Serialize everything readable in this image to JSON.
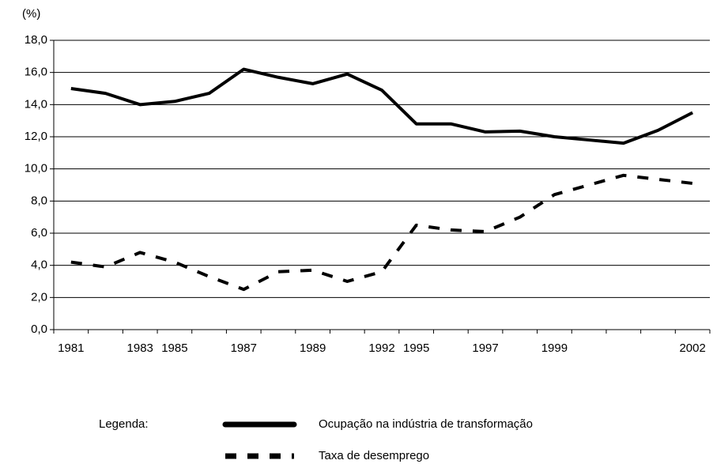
{
  "chart_data": {
    "type": "line",
    "y_axis_label": "(%)",
    "legend_title": "Legenda:",
    "categories": [
      "1981",
      null,
      "1983",
      "1985",
      null,
      "1987",
      null,
      "1989",
      null,
      "1992",
      "1995",
      null,
      "1997",
      null,
      "1999",
      null,
      null,
      null,
      "2002"
    ],
    "series": [
      {
        "name": "Ocupação na indústria de transformação",
        "color": "#000000",
        "dash": "solid",
        "values": [
          15.0,
          14.7,
          14.0,
          14.2,
          14.7,
          16.2,
          15.7,
          15.3,
          15.9,
          14.9,
          12.8,
          12.8,
          12.3,
          12.35,
          12.0,
          11.8,
          11.6,
          12.4,
          13.5
        ]
      },
      {
        "name": "Taxa de desemprego",
        "color": "#000000",
        "dash": "dashed",
        "values": [
          4.2,
          3.9,
          4.8,
          4.2,
          3.3,
          2.5,
          3.6,
          3.7,
          3.0,
          3.6,
          6.5,
          6.2,
          6.1,
          7.0,
          8.4,
          9.0,
          9.6,
          9.35,
          9.1
        ]
      }
    ],
    "ylim": [
      0,
      18
    ],
    "yticks": [
      {
        "value": 0,
        "label": "0,0"
      },
      {
        "value": 2,
        "label": "2,0"
      },
      {
        "value": 4,
        "label": "4,0"
      },
      {
        "value": 6,
        "label": "6,0"
      },
      {
        "value": 8,
        "label": "8,0"
      },
      {
        "value": 10,
        "label": "10,0"
      },
      {
        "value": 12,
        "label": "12,0"
      },
      {
        "value": 14,
        "label": "14,0"
      },
      {
        "value": 16,
        "label": "16,0"
      },
      {
        "value": 18,
        "label": "18,0"
      }
    ],
    "grid": true
  }
}
